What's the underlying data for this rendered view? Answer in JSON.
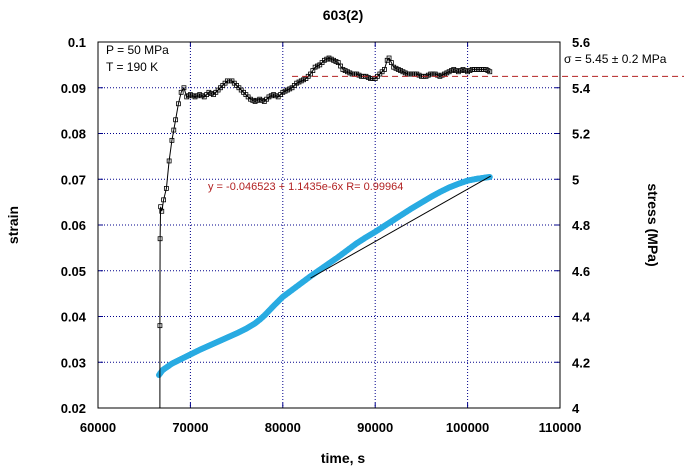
{
  "chart_data": {
    "type": "scatter",
    "title": "603(2)",
    "xlabel": "time, s",
    "ylabel_left": "strain",
    "ylabel_right": "stress (MPa)",
    "xlim": [
      60000,
      110000
    ],
    "ylim_left": [
      0.02,
      0.1
    ],
    "ylim_right": [
      4,
      5.6
    ],
    "x_ticks": [
      "60000",
      "70000",
      "80000",
      "90000",
      "100000",
      "110000"
    ],
    "y_left_ticks": [
      "0.02",
      "0.03",
      "0.04",
      "0.05",
      "0.06",
      "0.07",
      "0.08",
      "0.09",
      "0.1"
    ],
    "y_right_ticks": [
      "4",
      "4.2",
      "4.4",
      "4.6",
      "4.8",
      "5",
      "5.2",
      "5.4",
      "5.6"
    ],
    "grid": true,
    "colors": {
      "strain": "#29abe2",
      "stress": "#000000",
      "fit_text": "#b22222",
      "sigma_line": "#b22222",
      "grid": "#00008b",
      "axis": "#00008b"
    },
    "annotations": {
      "pressure": "P = 50 MPa",
      "temperature": "T = 190 K",
      "sigma": "σ = 5.45 ± 0.2 MPa",
      "fit": "y = -0.046523 + 1.1435e-6x   R= 0.99964"
    },
    "sigma_level": 5.45,
    "fit_line": {
      "intercept": -0.046523,
      "slope": 1.1435e-06,
      "x_range": [
        83000,
        102500
      ]
    },
    "series": [
      {
        "axis": "left",
        "marker": "circle",
        "points": [
          [
            66600,
            0.0272
          ],
          [
            67000,
            0.0283
          ],
          [
            68000,
            0.0297
          ],
          [
            69000,
            0.0307
          ],
          [
            70000,
            0.0317
          ],
          [
            71000,
            0.0327
          ],
          [
            72000,
            0.0336
          ],
          [
            73000,
            0.0345
          ],
          [
            74000,
            0.0354
          ],
          [
            75000,
            0.0363
          ],
          [
            76000,
            0.0373
          ],
          [
            77000,
            0.0385
          ],
          [
            77500,
            0.0393
          ],
          [
            78000,
            0.0402
          ],
          [
            79000,
            0.0423
          ],
          [
            80000,
            0.0443
          ],
          [
            81000,
            0.0458
          ],
          [
            82000,
            0.0473
          ],
          [
            83000,
            0.0488
          ],
          [
            84000,
            0.0502
          ],
          [
            85000,
            0.0516
          ],
          [
            86000,
            0.053
          ],
          [
            87000,
            0.0545
          ],
          [
            88000,
            0.056
          ],
          [
            89000,
            0.0573
          ],
          [
            90000,
            0.0585
          ],
          [
            91000,
            0.0598
          ],
          [
            92000,
            0.0611
          ],
          [
            93000,
            0.0624
          ],
          [
            94000,
            0.0637
          ],
          [
            95000,
            0.0649
          ],
          [
            96000,
            0.0661
          ],
          [
            97000,
            0.0672
          ],
          [
            98000,
            0.0682
          ],
          [
            99000,
            0.069
          ],
          [
            100000,
            0.0697
          ],
          [
            101000,
            0.0701
          ],
          [
            102400,
            0.0705
          ]
        ]
      },
      {
        "axis": "right",
        "marker": "square",
        "points": [
          [
            66700,
            4.36
          ],
          [
            66720,
            4.74
          ],
          [
            66780,
            4.88
          ],
          [
            66900,
            4.86
          ],
          [
            67100,
            4.91
          ],
          [
            67400,
            4.96
          ],
          [
            67700,
            5.08
          ],
          [
            68000,
            5.17
          ],
          [
            68400,
            5.26
          ],
          [
            68700,
            5.33
          ],
          [
            69000,
            5.38
          ],
          [
            69300,
            5.4
          ],
          [
            69600,
            5.36
          ],
          [
            70000,
            5.37
          ],
          [
            70500,
            5.36
          ],
          [
            71000,
            5.37
          ],
          [
            71500,
            5.36
          ],
          [
            72000,
            5.38
          ],
          [
            72500,
            5.37
          ],
          [
            73000,
            5.39
          ],
          [
            73500,
            5.41
          ],
          [
            74000,
            5.43
          ],
          [
            74500,
            5.43
          ],
          [
            75000,
            5.41
          ],
          [
            75500,
            5.39
          ],
          [
            76000,
            5.37
          ],
          [
            76500,
            5.35
          ],
          [
            77000,
            5.34
          ],
          [
            77500,
            5.35
          ],
          [
            78000,
            5.34
          ],
          [
            78500,
            5.36
          ],
          [
            79000,
            5.37
          ],
          [
            79500,
            5.36
          ],
          [
            80000,
            5.38
          ],
          [
            80500,
            5.39
          ],
          [
            81000,
            5.4
          ],
          [
            81500,
            5.42
          ],
          [
            82000,
            5.43
          ],
          [
            82500,
            5.44
          ],
          [
            83000,
            5.46
          ],
          [
            83500,
            5.49
          ],
          [
            84000,
            5.5
          ],
          [
            84500,
            5.52
          ],
          [
            85000,
            5.53
          ],
          [
            85500,
            5.52
          ],
          [
            86000,
            5.51
          ],
          [
            86500,
            5.48
          ],
          [
            87000,
            5.47
          ],
          [
            87500,
            5.46
          ],
          [
            88000,
            5.46
          ],
          [
            88500,
            5.45
          ],
          [
            89000,
            5.45
          ],
          [
            89500,
            5.44
          ],
          [
            90000,
            5.44
          ],
          [
            90500,
            5.46
          ],
          [
            91000,
            5.48
          ],
          [
            91300,
            5.52
          ],
          [
            91500,
            5.53
          ],
          [
            92000,
            5.49
          ],
          [
            92500,
            5.48
          ],
          [
            93000,
            5.47
          ],
          [
            93500,
            5.46
          ],
          [
            94000,
            5.46
          ],
          [
            94500,
            5.46
          ],
          [
            95000,
            5.45
          ],
          [
            95500,
            5.45
          ],
          [
            96000,
            5.46
          ],
          [
            96500,
            5.46
          ],
          [
            97000,
            5.45
          ],
          [
            97500,
            5.46
          ],
          [
            98000,
            5.47
          ],
          [
            98500,
            5.48
          ],
          [
            99000,
            5.47
          ],
          [
            99500,
            5.48
          ],
          [
            100000,
            5.47
          ],
          [
            100500,
            5.48
          ],
          [
            101000,
            5.48
          ],
          [
            101500,
            5.48
          ],
          [
            102000,
            5.48
          ],
          [
            102400,
            5.47
          ]
        ]
      }
    ]
  }
}
